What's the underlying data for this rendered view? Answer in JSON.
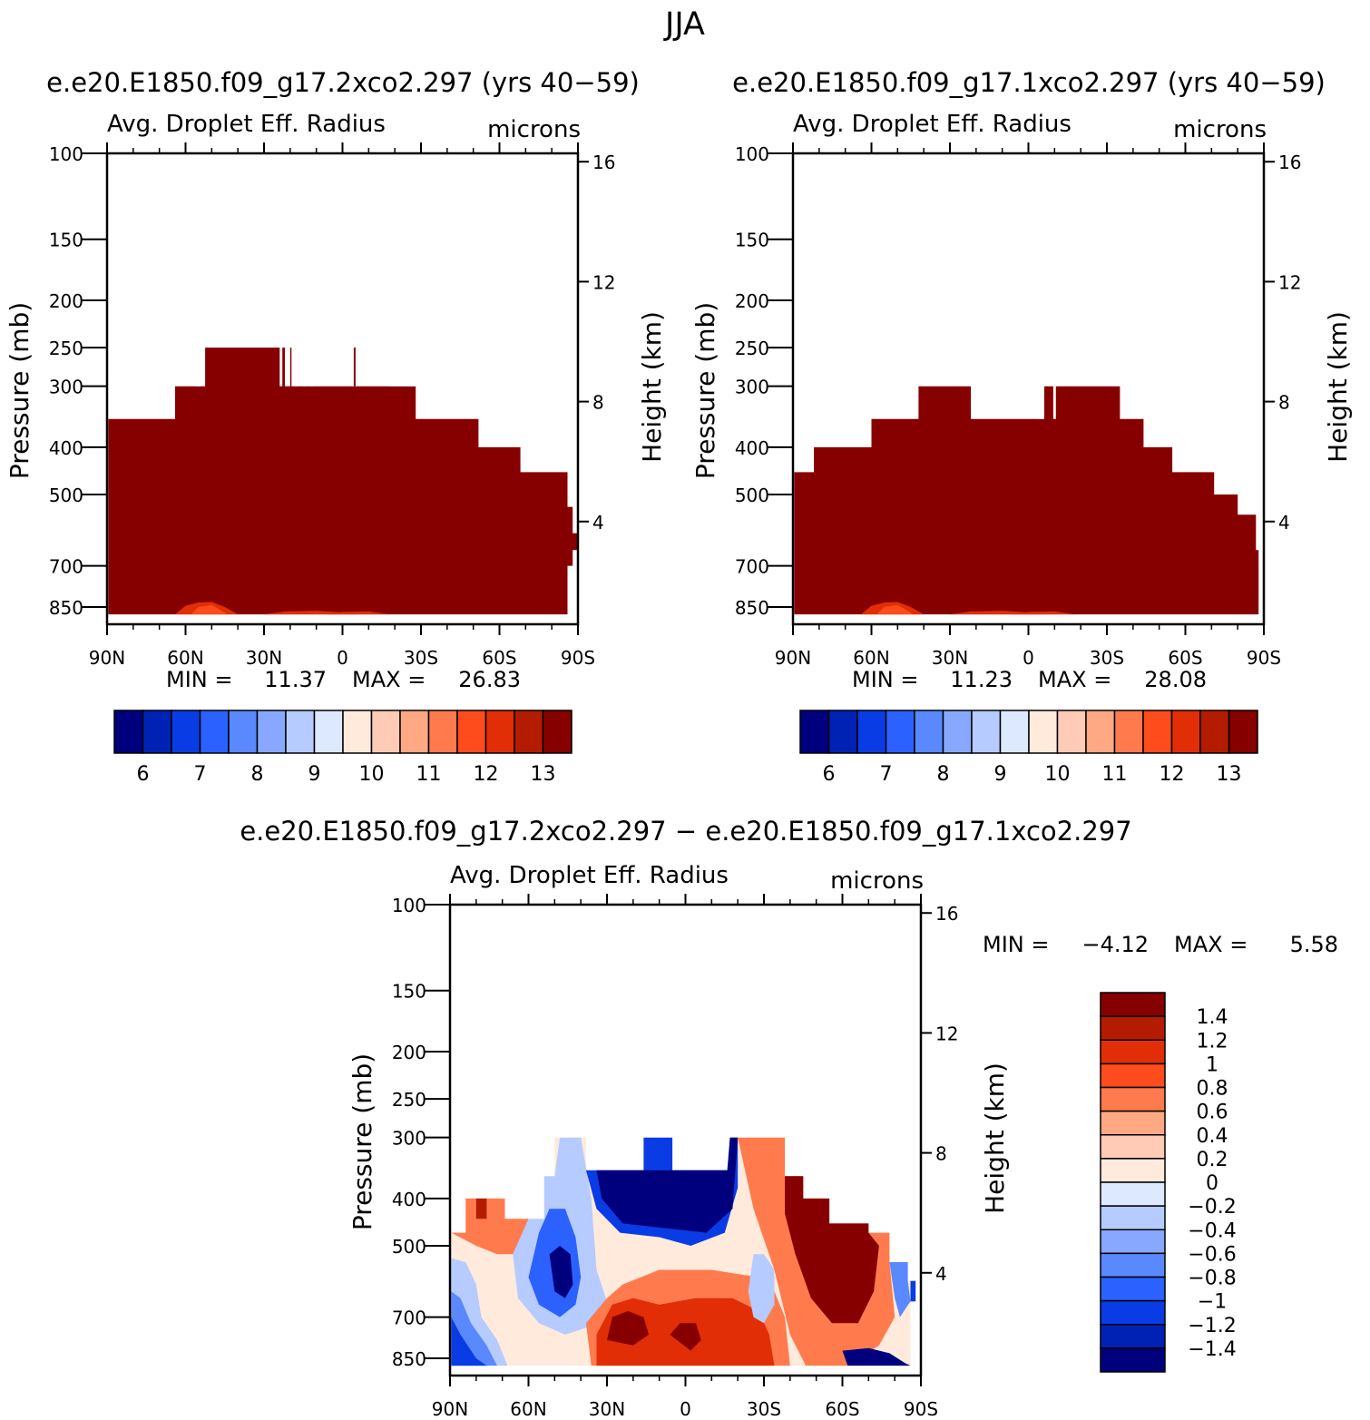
{
  "page_title": "JJA",
  "colors": {
    "top_panel_fill": "#870000",
    "contour_line": "#000000",
    "background": "#ffffff"
  },
  "chart_data": [
    {
      "id": "panel_a",
      "type": "heatmap",
      "title": "e.e20.E1850.f09_g17.2xco2.297 (yrs 40-59)",
      "subtitle": "Avg. Droplet Eff. Radius",
      "units": "microns",
      "xlabel": "",
      "ylabel": "Pressure (mb)",
      "y2label": "Height (km)",
      "x_ticks": [
        "90N",
        "60N",
        "30N",
        "0",
        "30S",
        "60S",
        "90S"
      ],
      "x_values": [
        90,
        60,
        30,
        0,
        -30,
        -60,
        -90
      ],
      "y_ticks": [
        100,
        150,
        200,
        250,
        300,
        400,
        500,
        700,
        850
      ],
      "y2_ticks": [
        16,
        12,
        8,
        4
      ],
      "min_label": "MIN =",
      "min": "11.37",
      "max_label": "MAX =",
      "max": "26.83",
      "colorbar": {
        "orientation": "horizontal",
        "colors": [
          "#00007e",
          "#0022b4",
          "#0a3ce6",
          "#2b62ff",
          "#5a89ff",
          "#88a8ff",
          "#b6cbff",
          "#dce9ff",
          "#ffeadc",
          "#ffcbb6",
          "#ffa884",
          "#ff7b4e",
          "#ff4c1c",
          "#e22e06",
          "#b41c00",
          "#870000"
        ],
        "labels": [
          "6",
          "7",
          "8",
          "9",
          "10",
          "11",
          "12",
          "13"
        ]
      },
      "field_summary": "Values exceed 13 microns nearly everywhere cloud exists (dark red); cloud top near 250-300 mb in tropics/subtropics, falling to ~600 mb near 90S; lighter red patches (12-13) near 850 mb around 60N-50N and 20N-20S."
    },
    {
      "id": "panel_b",
      "type": "heatmap",
      "title": "e.e20.E1850.f09_g17.1xco2.297 (yrs 40-59)",
      "subtitle": "Avg. Droplet Eff. Radius",
      "units": "microns",
      "xlabel": "",
      "ylabel": "Pressure (mb)",
      "y2label": "Height (km)",
      "x_ticks": [
        "90N",
        "60N",
        "30N",
        "0",
        "30S",
        "60S",
        "90S"
      ],
      "x_values": [
        90,
        60,
        30,
        0,
        -30,
        -60,
        -90
      ],
      "y_ticks": [
        100,
        150,
        200,
        250,
        300,
        400,
        500,
        700,
        850
      ],
      "y2_ticks": [
        16,
        12,
        8,
        4
      ],
      "min_label": "MIN =",
      "min": "11.23",
      "max_label": "MAX =",
      "max": "28.08",
      "colorbar": {
        "orientation": "horizontal",
        "colors": [
          "#00007e",
          "#0022b4",
          "#0a3ce6",
          "#2b62ff",
          "#5a89ff",
          "#88a8ff",
          "#b6cbff",
          "#dce9ff",
          "#ffeadc",
          "#ffcbb6",
          "#ffa884",
          "#ff7b4e",
          "#ff4c1c",
          "#e22e06",
          "#b41c00",
          "#870000"
        ],
        "labels": [
          "6",
          "7",
          "8",
          "9",
          "10",
          "11",
          "12",
          "13"
        ]
      },
      "field_summary": "Similar to panel a with slightly lower cloud top (~300 mb peak)."
    },
    {
      "id": "panel_diff",
      "type": "heatmap",
      "title": "e.e20.E1850.f09_g17.2xco2.297 - e.e20.E1850.f09_g17.1xco2.297",
      "subtitle": "Avg. Droplet Eff. Radius",
      "units": "microns",
      "xlabel": "",
      "ylabel": "Pressure (mb)",
      "y2label": "Height (km)",
      "x_ticks": [
        "90N",
        "60N",
        "30N",
        "0",
        "30S",
        "60S",
        "90S"
      ],
      "x_values": [
        90,
        60,
        30,
        0,
        -30,
        -60,
        -90
      ],
      "y_ticks": [
        100,
        150,
        200,
        250,
        300,
        400,
        500,
        700,
        850
      ],
      "y2_ticks": [
        16,
        12,
        8,
        4
      ],
      "min_label": "MIN =",
      "min": "-4.12",
      "max_label": "MAX =",
      "max": "5.58",
      "colorbar": {
        "orientation": "vertical",
        "colors": [
          "#870000",
          "#b41c00",
          "#e22e06",
          "#ff4c1c",
          "#ff7b4e",
          "#ffa884",
          "#ffcbb6",
          "#ffeadc",
          "#dce9ff",
          "#b6cbff",
          "#88a8ff",
          "#5a89ff",
          "#2b62ff",
          "#0a3ce6",
          "#0022b4",
          "#00007e"
        ],
        "labels": [
          "1.4",
          "1.2",
          "1",
          "0.8",
          "0.6",
          "0.4",
          "0.2",
          "0",
          "-0.2",
          "-0.4",
          "-0.6",
          "-0.8",
          "-1",
          "-1.2",
          "-1.4"
        ]
      },
      "field_summary": "Strong negative (blue) differences at 300-450 mb near 20N-10S and around 45N at 450-650 mb; positive (red) differences at 350-550 mb 30S-60S and at 650-850 mb between 35N and 25S; mixed near both poles."
    }
  ]
}
